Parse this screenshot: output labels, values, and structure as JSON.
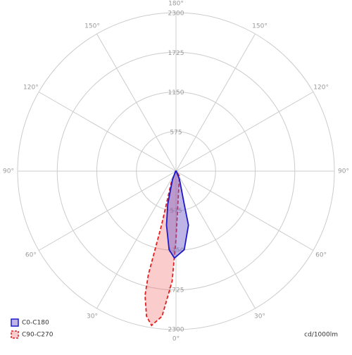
{
  "chart_data": {
    "type": "polar",
    "rlim": [
      0,
      2300
    ],
    "rticks": [
      575,
      1150,
      1725,
      2300
    ],
    "angle_ticks": [
      {
        "value": 0,
        "label": "0°"
      },
      {
        "value": 30,
        "label": "30°"
      },
      {
        "value": -30,
        "label": "30°"
      },
      {
        "value": 60,
        "label": "60°"
      },
      {
        "value": -60,
        "label": "60°"
      },
      {
        "value": 90,
        "label": "90°"
      },
      {
        "value": -90,
        "label": "90°"
      },
      {
        "value": 120,
        "label": "120°"
      },
      {
        "value": -120,
        "label": "120°"
      },
      {
        "value": 150,
        "label": "150°"
      },
      {
        "value": -150,
        "label": "150°"
      },
      {
        "value": 180,
        "label": "180°"
      }
    ],
    "unit_label": "cd/1000lm",
    "series": [
      {
        "name": "C90-C270",
        "color": "#e02020",
        "fill": "rgba(240,110,110,0.35)",
        "dashed": true,
        "angles": [
          -90,
          -22,
          -15,
          -15,
          -14,
          -11.5,
          -9,
          -5.5,
          -2,
          0,
          5,
          35,
          90
        ],
        "values": [
          5,
          187,
          810,
          1550,
          1858,
          2148,
          2268,
          2116,
          1598,
          987,
          378,
          88,
          5
        ]
      },
      {
        "name": "C0-C180",
        "color": "#1a1acc",
        "fill": "rgba(110,90,200,0.45)",
        "dashed": false,
        "angles": [
          -90,
          -23,
          -14,
          -10,
          -5,
          -1,
          6,
          13,
          14,
          23,
          90
        ],
        "values": [
          5,
          132,
          494,
          795,
          1144,
          1262,
          1146,
          804,
          494,
          132,
          5
        ]
      }
    ]
  }
}
